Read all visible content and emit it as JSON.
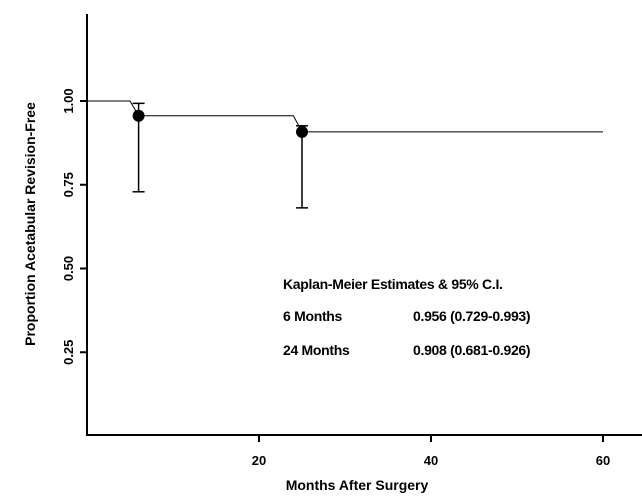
{
  "chart_data": {
    "type": "line",
    "xlabel": "Months After Surgery",
    "ylabel": "Proportion Acetabular Revision-Free",
    "xlim": [
      0,
      64
    ],
    "ylim": [
      0,
      1.25
    ],
    "x_ticks": [
      20,
      40,
      60
    ],
    "x_tick_labels": [
      "20",
      "40",
      "60"
    ],
    "y_ticks": [
      0.25,
      0.5,
      0.75,
      1.0
    ],
    "y_tick_labels": [
      "0.25",
      "0.50",
      "0.75",
      "1.00"
    ],
    "grid": false,
    "series": [
      {
        "x": [
          0,
          5,
          6,
          24,
          25,
          60
        ],
        "y": [
          1.0,
          1.0,
          0.956,
          0.956,
          0.908,
          0.908
        ]
      }
    ],
    "points": [
      {
        "x": 6,
        "y": 0.956,
        "lower": 0.729,
        "upper": 0.993
      },
      {
        "x": 25,
        "y": 0.908,
        "lower": 0.681,
        "upper": 0.926
      }
    ],
    "annotation": {
      "title": "Kaplan-Meier Estimates & 95% C.I.",
      "rows": [
        {
          "label": "6 Months",
          "value": "0.956 (0.729-0.993)"
        },
        {
          "label": "24 Months",
          "value": "0.908 (0.681-0.926)"
        }
      ]
    }
  }
}
